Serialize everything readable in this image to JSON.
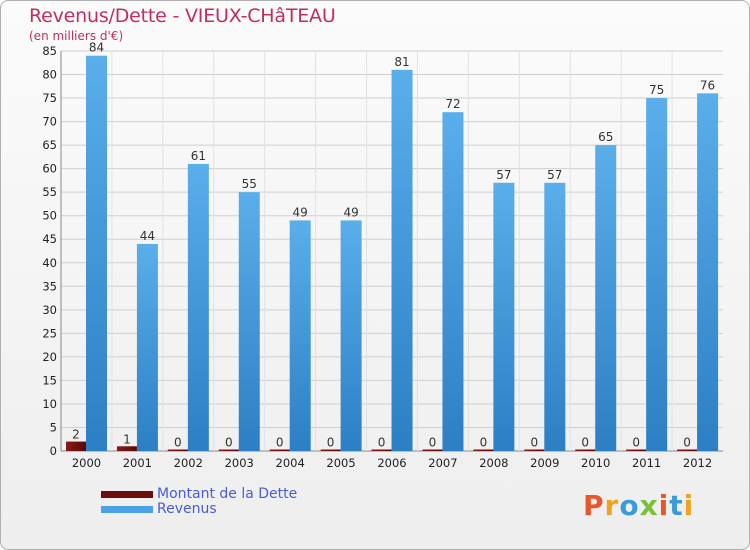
{
  "chart_data": {
    "type": "bar",
    "title": "Revenus/Dette - VIEUX-CHâTEAU",
    "subtitle": "(en milliers d'€)",
    "xlabel": "",
    "ylabel": "",
    "ylim": [
      0,
      85
    ],
    "ytick_step": 5,
    "grid": true,
    "categories": [
      "2000",
      "2001",
      "2002",
      "2003",
      "2004",
      "2005",
      "2006",
      "2007",
      "2008",
      "2009",
      "2010",
      "2011",
      "2012"
    ],
    "series": [
      {
        "name": "Montant de la Dette",
        "color": "#6b0d0d",
        "values": [
          2,
          1,
          0,
          0,
          0,
          0,
          0,
          0,
          0,
          0,
          0,
          0,
          0
        ]
      },
      {
        "name": "Revenus",
        "color": "#4aa3e6",
        "values": [
          84,
          44,
          61,
          55,
          49,
          49,
          81,
          72,
          57,
          57,
          65,
          75,
          76
        ]
      }
    ],
    "legend_position": "bottom-left"
  },
  "branding": {
    "logo_text": "Proxiti",
    "logo_colors": [
      "#e8562a",
      "#f2a21c",
      "#3a9bd8",
      "#7cbf3a",
      "#e8562a",
      "#3a9bd8",
      "#f2a21c"
    ]
  }
}
